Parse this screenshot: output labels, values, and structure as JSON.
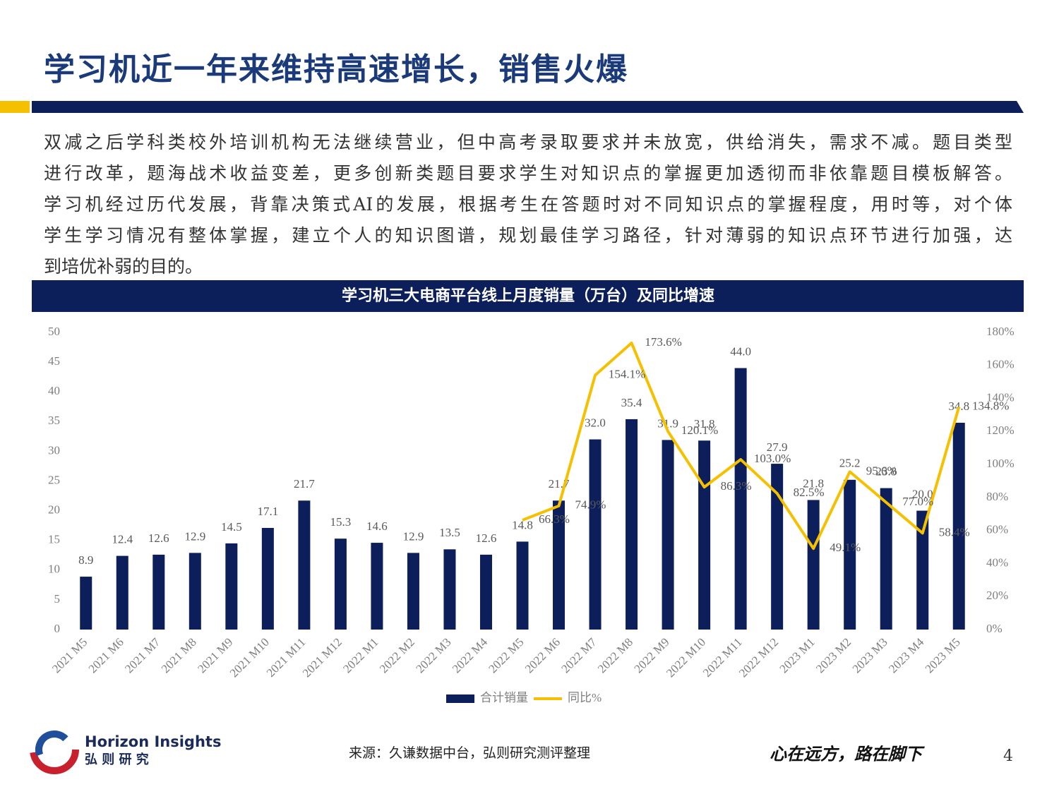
{
  "header": {
    "title": "学习机近一年来维持高速增长，销售火爆"
  },
  "paragraph": [
    "双减之后学科类校外培训机构无法继续营业，但中高考录取要求并未放宽，供给消失，需求不减。题目类型",
    "进行改革，题海战术收益变差，更多创新类题目要求学生对知识点的掌握更加透彻而非依靠题目模板解答。",
    "学习机经过历代发展，背靠决策式AI的发展，根据考生在答题时对不同知识点的掌握程度，用时等，对个体",
    "学生学习情况有整体掌握，建立个人的知识图谱，规划最佳学习路径，针对薄弱的知识点环节进行加强，达",
    "到培优补弱的目的。"
  ],
  "chart_data": {
    "type": "bar",
    "title": "学习机三大电商平台线上月度销量（万台）及同比增速",
    "categories": [
      "2021 M5",
      "2021 M6",
      "2021 M7",
      "2021 M8",
      "2021 M9",
      "2021 M10",
      "2021 M11",
      "2021 M12",
      "2022 M1",
      "2022 M2",
      "2022 M3",
      "2022 M4",
      "2022 M5",
      "2022 M6",
      "2022 M7",
      "2022 M8",
      "2022 M9",
      "2022 M10",
      "2022 M11",
      "2022 M12",
      "2023 M1",
      "2023 M2",
      "2023 M3",
      "2023 M4",
      "2023 M5"
    ],
    "series": [
      {
        "name": "合计销量",
        "type": "bar",
        "color": "#0c1f5b",
        "values": [
          8.9,
          12.4,
          12.6,
          12.9,
          14.5,
          17.1,
          21.7,
          15.3,
          14.6,
          12.9,
          13.5,
          12.6,
          14.8,
          21.7,
          32.0,
          35.4,
          31.9,
          31.8,
          44.0,
          27.9,
          21.8,
          25.2,
          23.8,
          20.0,
          34.8
        ],
        "value_labels": [
          "8.9",
          "12.4",
          "12.6",
          "12.9",
          "14.5",
          "17.1",
          "21.7",
          "15.3",
          "14.6",
          "12.9",
          "13.5",
          "12.6",
          "14.8",
          "21.7",
          "32.0",
          "35.4",
          "31.9",
          "31.8",
          "44.0",
          "27.9",
          "21.8",
          "25.2",
          "23.8",
          "20.0",
          "34.8"
        ]
      },
      {
        "name": "同比%",
        "type": "line",
        "axis": "y2",
        "color": "#f5c000",
        "values": [
          null,
          null,
          null,
          null,
          null,
          null,
          null,
          null,
          null,
          null,
          null,
          null,
          66.3,
          74.9,
          154.1,
          173.6,
          120.1,
          86.3,
          103.0,
          82.5,
          49.1,
          95.6,
          77.0,
          58.4,
          134.8
        ],
        "value_labels": [
          null,
          null,
          null,
          null,
          null,
          null,
          null,
          null,
          null,
          null,
          null,
          null,
          "66.3%",
          "74.9%",
          "154.1%",
          "173.6%",
          "120.1%",
          "86.3%",
          "103.0%",
          "82.5%",
          "49.1%",
          "95.6%",
          "77.0%",
          "58.4%",
          "134.8%"
        ]
      }
    ],
    "ylim": [
      0,
      50
    ],
    "yticks": [
      0,
      5,
      10,
      15,
      20,
      25,
      30,
      35,
      40,
      45,
      50
    ],
    "y2lim": [
      0,
      180
    ],
    "y2ticks": [
      {
        "value": 0,
        "label": "0%"
      },
      {
        "value": 20,
        "label": "20%"
      },
      {
        "value": 40,
        "label": "40%"
      },
      {
        "value": 60,
        "label": "60%"
      },
      {
        "value": 80,
        "label": "80%"
      },
      {
        "value": 100,
        "label": "100%"
      },
      {
        "value": 120,
        "label": "120%"
      },
      {
        "value": 140,
        "label": "140%"
      },
      {
        "value": 160,
        "label": "160%"
      },
      {
        "value": 180,
        "label": "180%"
      }
    ],
    "legend": "bottom"
  },
  "footer": {
    "logo": "Horizon Insights",
    "logo_cn": "弘 则 研 究",
    "source": "来源：久谦数据中台，弘则研究测评整理",
    "slogan": "心在远方，路在脚下",
    "page": "4"
  }
}
